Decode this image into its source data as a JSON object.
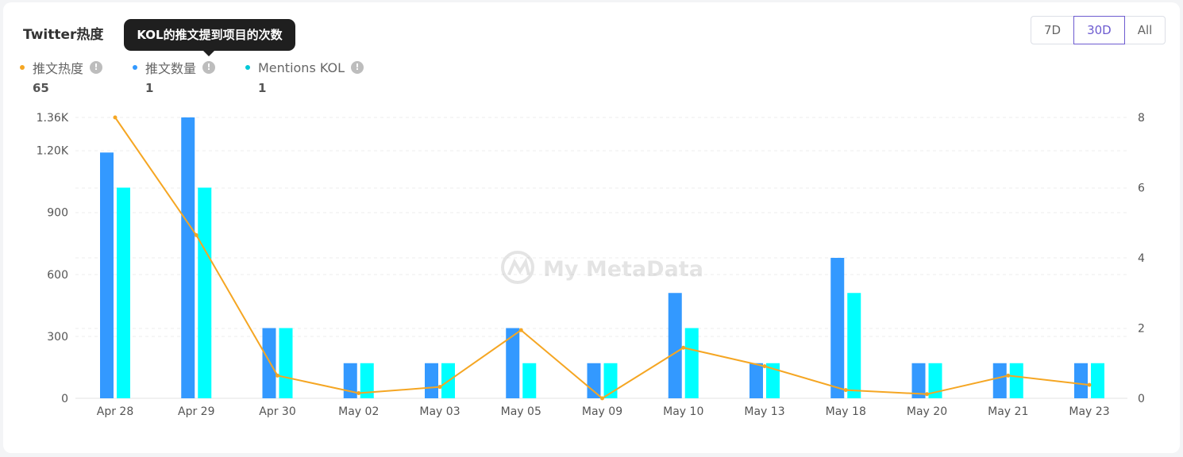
{
  "header": {
    "title": "Twitter热度",
    "tooltip": "KOL的推文提到项目的次数"
  },
  "range": {
    "options": [
      "7D",
      "30D",
      "All"
    ],
    "active": "30D"
  },
  "legend": [
    {
      "label": "推文热度",
      "value": "65",
      "color": "#f5a623"
    },
    {
      "label": "推文数量",
      "value": "1",
      "color": "#3399ff"
    },
    {
      "label": "Mentions KOL",
      "value": "1",
      "color": "#00c8d7"
    }
  ],
  "watermark": "My MetaData",
  "chart_data": {
    "type": "bar",
    "categories": [
      "Apr 28",
      "Apr 29",
      "Apr 30",
      "May 02",
      "May 03",
      "May 05",
      "May 09",
      "May 10",
      "May 13",
      "May 18",
      "May 20",
      "May 21",
      "May 23"
    ],
    "series": [
      {
        "name": "推文数量",
        "type": "bar",
        "axis": "right",
        "color": "#3399ff",
        "values": [
          7,
          8,
          2,
          1,
          1,
          2,
          1,
          3,
          1,
          4,
          1,
          1,
          1
        ]
      },
      {
        "name": "Mentions KOL",
        "type": "bar",
        "axis": "right",
        "color": "#00ffff",
        "values": [
          6,
          6,
          2,
          1,
          1,
          1,
          1,
          2,
          1,
          3,
          1,
          1,
          1
        ]
      },
      {
        "name": "推文热度",
        "type": "line",
        "axis": "left",
        "color": "#f5a623",
        "values": [
          1360,
          790,
          110,
          25,
          55,
          330,
          0,
          245,
          155,
          40,
          20,
          110,
          65
        ]
      }
    ],
    "y_left": {
      "ticks": [
        0,
        300,
        600,
        900,
        1200,
        1360
      ],
      "tick_labels": [
        "0",
        "300",
        "600",
        "900",
        "1.20K",
        "1.36K"
      ],
      "range": [
        0,
        1360
      ]
    },
    "y_right": {
      "ticks": [
        0,
        2,
        4,
        6,
        8
      ],
      "tick_labels": [
        "0",
        "2",
        "4",
        "6",
        "8"
      ],
      "range": [
        0,
        8
      ]
    },
    "grid": true
  }
}
